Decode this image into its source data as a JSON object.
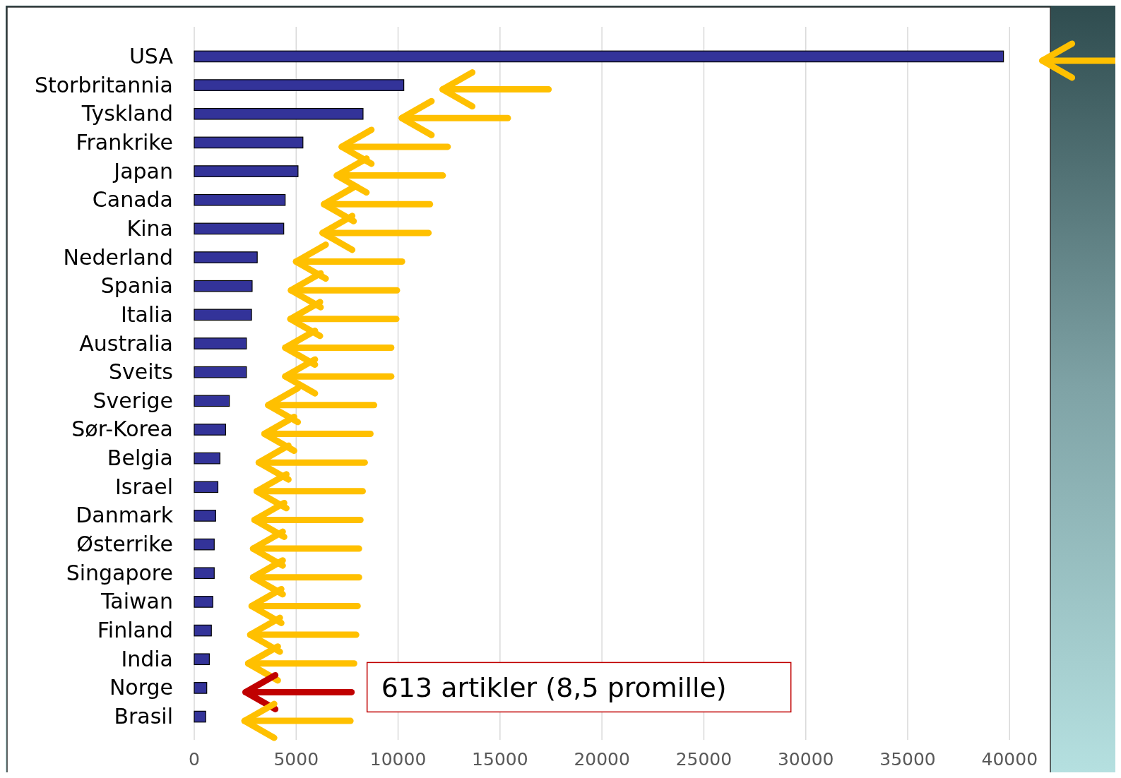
{
  "chart_data": {
    "type": "bar",
    "orientation": "horizontal",
    "categories": [
      "USA",
      "Storbritannia",
      "Tyskland",
      "Frankrike",
      "Japan",
      "Canada",
      "Kina",
      "Nederland",
      "Spania",
      "Italia",
      "Australia",
      "Sveits",
      "Sverige",
      "Sør-Korea",
      "Belgia",
      "Israel",
      "Danmark",
      "Østerrike",
      "Singapore",
      "Taiwan",
      "Finland",
      "India",
      "Norge",
      "Brasil"
    ],
    "values": [
      39700,
      10280,
      8280,
      5330,
      5090,
      4460,
      4390,
      3090,
      2840,
      2810,
      2560,
      2560,
      1720,
      1540,
      1260,
      1160,
      1050,
      980,
      980,
      910,
      840,
      740,
      613,
      560
    ],
    "color": "#333399",
    "xlim": [
      0,
      42000
    ],
    "xticks": [
      0,
      5000,
      10000,
      15000,
      20000,
      25000,
      30000,
      35000,
      40000
    ],
    "grid": "x",
    "annotations": [
      "613 artikler (8,5 promille)"
    ]
  }
}
